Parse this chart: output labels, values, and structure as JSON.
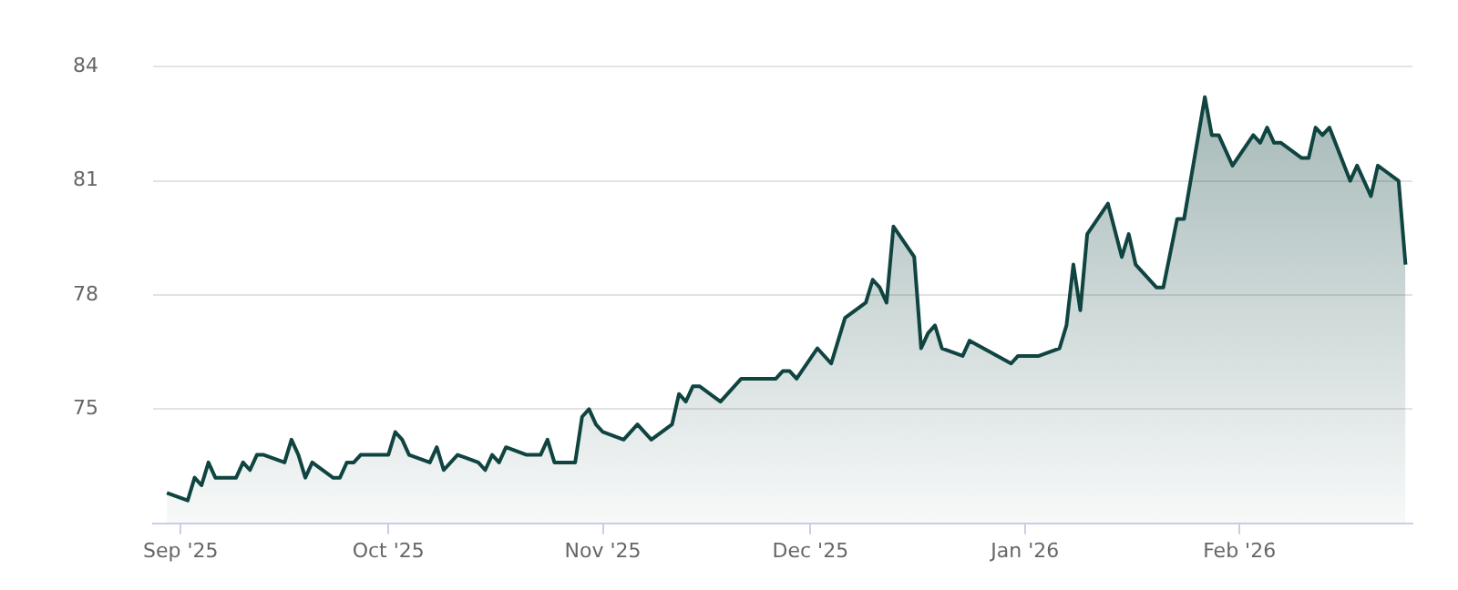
{
  "chart_data": {
    "type": "area",
    "x": [
      "2025-08-30",
      "2025-09-02",
      "2025-09-03",
      "2025-09-04",
      "2025-09-05",
      "2025-09-06",
      "2025-09-09",
      "2025-09-10",
      "2025-09-11",
      "2025-09-12",
      "2025-09-13",
      "2025-09-16",
      "2025-09-17",
      "2025-09-18",
      "2025-09-19",
      "2025-09-20",
      "2025-09-23",
      "2025-09-24",
      "2025-09-25",
      "2025-09-26",
      "2025-09-27",
      "2025-10-01",
      "2025-10-02",
      "2025-10-03",
      "2025-10-04",
      "2025-10-07",
      "2025-10-08",
      "2025-10-09",
      "2025-10-11",
      "2025-10-14",
      "2025-10-15",
      "2025-10-16",
      "2025-10-17",
      "2025-10-18",
      "2025-10-21",
      "2025-10-23",
      "2025-10-24",
      "2025-10-25",
      "2025-10-28",
      "2025-10-29",
      "2025-10-30",
      "2025-10-31",
      "2025-11-01",
      "2025-11-04",
      "2025-11-06",
      "2025-11-08",
      "2025-11-11",
      "2025-11-12",
      "2025-11-13",
      "2025-11-14",
      "2025-11-15",
      "2025-11-18",
      "2025-11-21",
      "2025-11-26",
      "2025-11-27",
      "2025-11-28",
      "2025-11-29",
      "2025-12-02",
      "2025-12-04",
      "2025-12-06",
      "2025-12-09",
      "2025-12-10",
      "2025-12-11",
      "2025-12-12",
      "2025-12-13",
      "2025-12-16",
      "2025-12-17",
      "2025-12-18",
      "2025-12-19",
      "2025-12-20",
      "2025-12-23",
      "2025-12-24",
      "2025-12-30",
      "2025-12-31",
      "2026-01-03",
      "2026-01-06",
      "2026-01-07",
      "2026-01-08",
      "2026-01-09",
      "2026-01-10",
      "2026-01-13",
      "2026-01-15",
      "2026-01-16",
      "2026-01-17",
      "2026-01-20",
      "2026-01-21",
      "2026-01-23",
      "2026-01-24",
      "2026-01-27",
      "2026-01-28",
      "2026-01-29",
      "2026-01-31",
      "2026-02-03",
      "2026-02-04",
      "2026-02-05",
      "2026-02-06",
      "2026-02-07",
      "2026-02-10",
      "2026-02-11",
      "2026-02-12",
      "2026-02-13",
      "2026-02-14",
      "2026-02-17",
      "2026-02-18",
      "2026-02-20",
      "2026-02-21",
      "2026-02-24",
      "2026-02-25"
    ],
    "values": [
      72.8,
      72.6,
      73.2,
      73.0,
      73.6,
      73.2,
      73.2,
      73.6,
      73.4,
      73.8,
      73.8,
      73.6,
      74.2,
      73.8,
      73.2,
      73.6,
      73.2,
      73.2,
      73.6,
      73.6,
      73.8,
      73.8,
      74.4,
      74.2,
      73.8,
      73.6,
      74.0,
      73.4,
      73.8,
      73.6,
      73.4,
      73.8,
      73.6,
      74.0,
      73.8,
      73.8,
      74.2,
      73.6,
      73.6,
      74.8,
      75.0,
      74.6,
      74.4,
      74.2,
      74.6,
      74.2,
      74.6,
      75.4,
      75.2,
      75.6,
      75.6,
      75.2,
      75.8,
      75.8,
      76.0,
      76.0,
      75.8,
      76.6,
      76.2,
      77.4,
      77.8,
      78.4,
      78.2,
      77.8,
      79.8,
      79.0,
      76.6,
      77.0,
      77.2,
      76.6,
      76.4,
      76.8,
      76.2,
      76.4,
      76.4,
      76.6,
      77.2,
      78.8,
      77.6,
      79.6,
      80.4,
      79.0,
      79.6,
      78.8,
      78.2,
      78.2,
      80.0,
      80.0,
      83.2,
      82.2,
      82.2,
      81.4,
      82.2,
      82.0,
      82.4,
      82.0,
      82.0,
      81.6,
      81.6,
      82.4,
      82.2,
      82.4,
      81.0,
      81.4,
      80.6,
      81.4,
      81.0,
      78.8
    ],
    "color": "#0f4440",
    "xlim": [
      "2025-08-28",
      "2026-02-26"
    ],
    "xticks": [
      {
        "value": "2025-09-01",
        "label": "Sep '25"
      },
      {
        "value": "2025-10-01",
        "label": "Oct '25"
      },
      {
        "value": "2025-11-01",
        "label": "Nov '25"
      },
      {
        "value": "2025-12-01",
        "label": "Dec '25"
      },
      {
        "value": "2026-01-01",
        "label": "Jan '26"
      },
      {
        "value": "2026-02-01",
        "label": "Feb '26"
      }
    ],
    "ylim": [
      72,
      84
    ],
    "yticks": [
      75,
      78,
      81,
      84
    ],
    "grid": "y"
  }
}
